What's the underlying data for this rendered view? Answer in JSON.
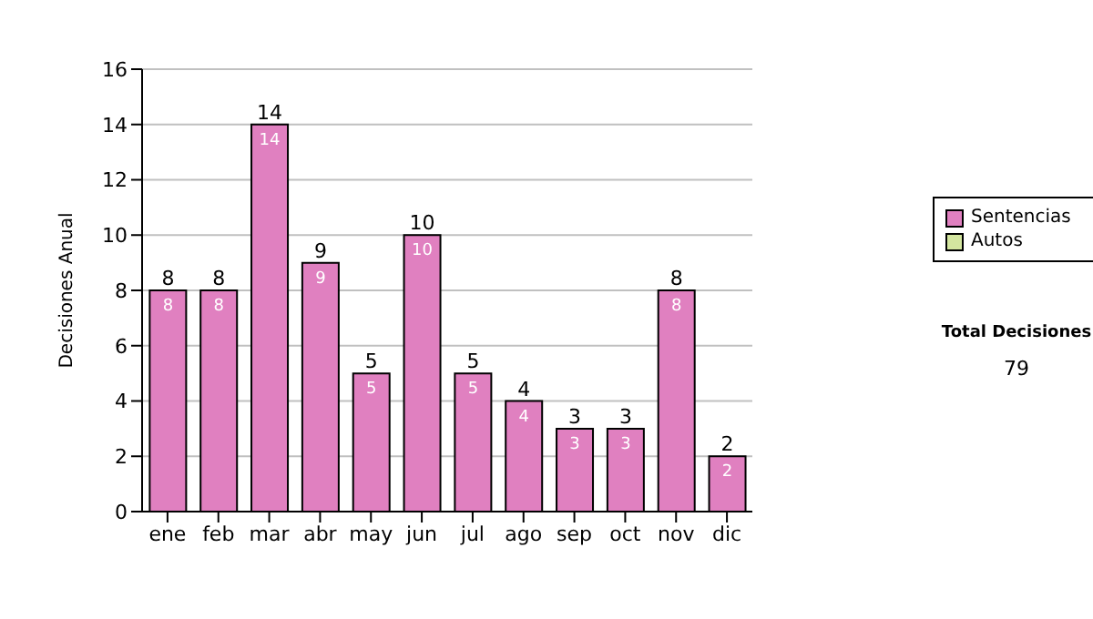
{
  "chart_data": {
    "type": "bar",
    "ylabel": "Decisiones Anual",
    "categories": [
      "ene",
      "feb",
      "mar",
      "abr",
      "may",
      "jun",
      "jul",
      "ago",
      "sep",
      "oct",
      "nov",
      "dic"
    ],
    "series": [
      {
        "name": "Sentencias",
        "color": "#e080c0",
        "values": [
          8,
          8,
          14,
          9,
          5,
          10,
          5,
          4,
          3,
          3,
          8,
          2
        ],
        "value_labels": [
          "8",
          "8",
          "14",
          "9",
          "5",
          "10",
          "5",
          "4",
          "3",
          "3",
          "8",
          "2"
        ]
      },
      {
        "name": "Autos",
        "color": "#d4e6a0",
        "values": [
          0,
          0,
          0,
          0,
          0,
          0,
          0,
          0,
          0,
          0,
          0,
          0
        ]
      }
    ],
    "stacked": true,
    "totals": [
      "8",
      "8",
      "14",
      "9",
      "5",
      "10",
      "5",
      "4",
      "3",
      "3",
      "8",
      "2"
    ],
    "ylim": [
      0,
      16
    ],
    "yticks": [
      0,
      2,
      4,
      6,
      8,
      10,
      12,
      14,
      16
    ],
    "grid": "y",
    "legend": "right",
    "annotations": [
      "Total Decisiones",
      "79"
    ]
  }
}
